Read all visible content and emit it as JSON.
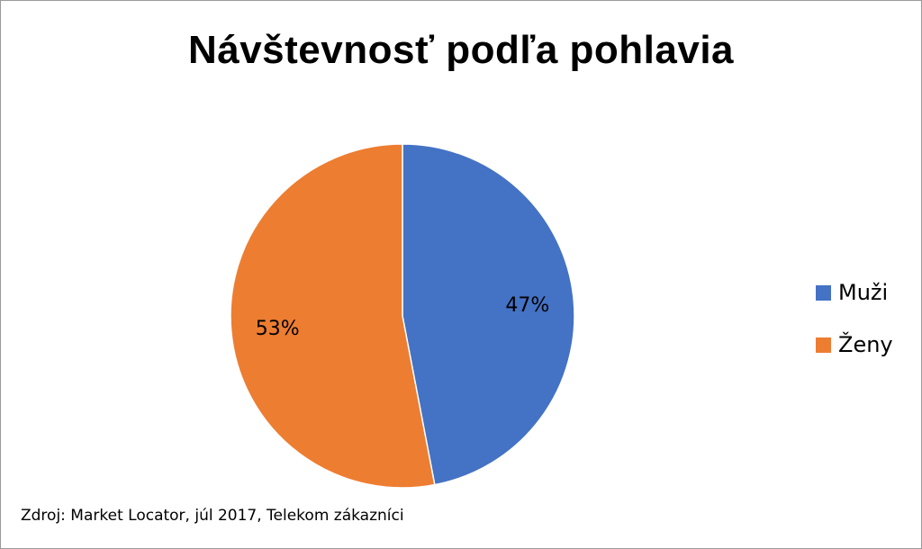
{
  "chart_data": {
    "type": "pie",
    "title": "Návštevnosť podľa pohlavia",
    "categories": [
      "Muži",
      "Ženy"
    ],
    "values": [
      47,
      53
    ],
    "value_labels": [
      "47%",
      "53%"
    ],
    "colors": [
      "#4472C4",
      "#ED7D31"
    ],
    "legend_position": "right"
  },
  "source": "Zdroj: Market Locator, júl 2017, Telekom zákazníci"
}
